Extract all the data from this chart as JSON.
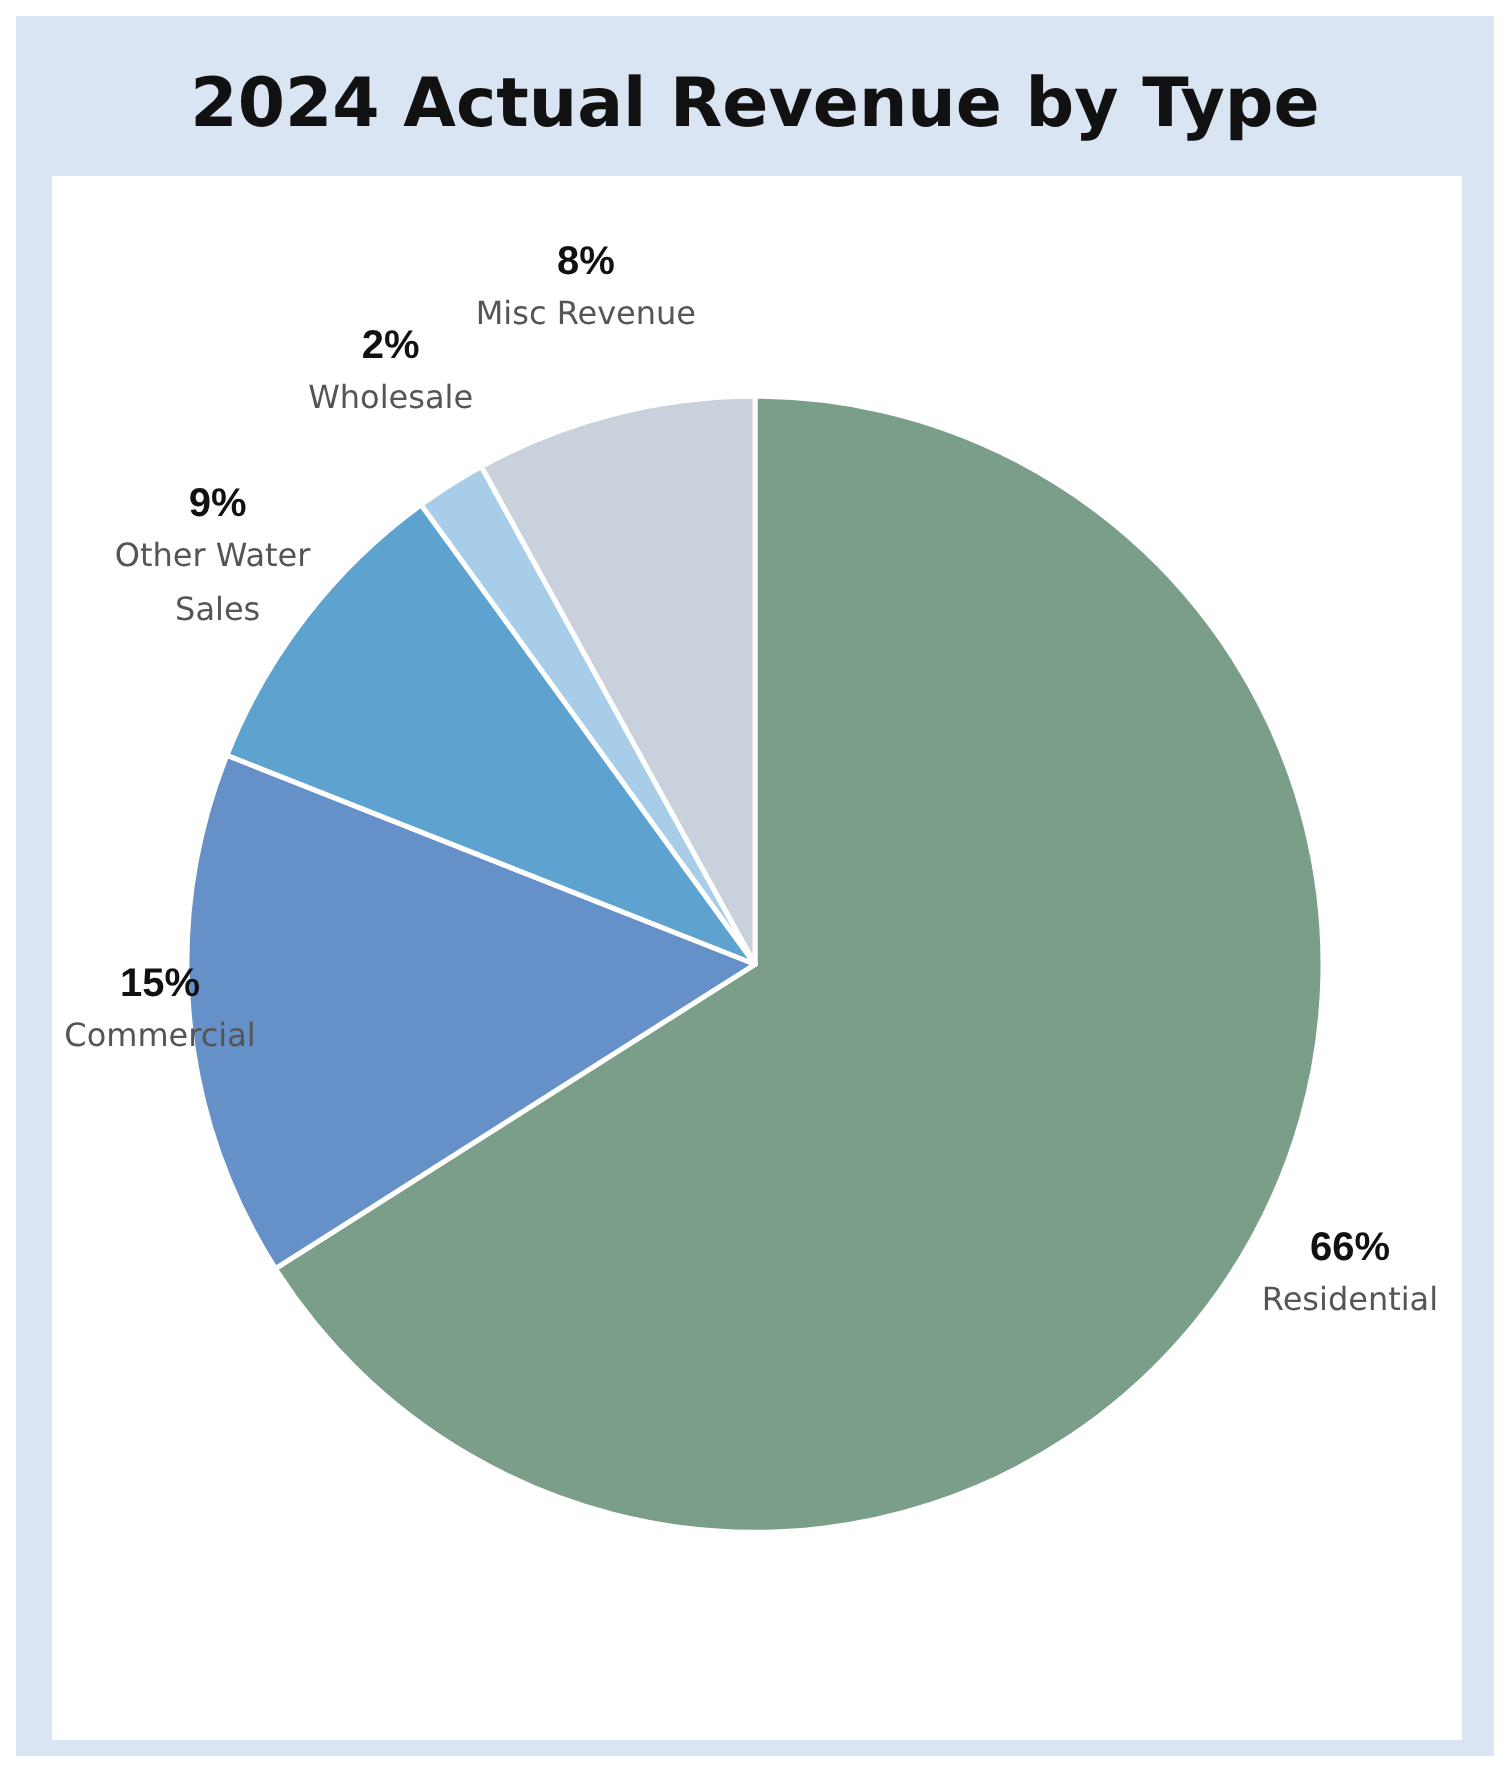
{
  "chart_data": {
    "type": "pie",
    "title": "2024 Actual Revenue by Type",
    "categories": [
      "Residential",
      "Commercial",
      "Other Water Sales",
      "Wholesale",
      "Misc Revenue"
    ],
    "values": [
      66,
      15,
      9,
      2,
      8
    ],
    "value_labels": [
      "66%",
      "15%",
      "9%",
      "2%",
      "8%"
    ],
    "colors": [
      "#7a9e87",
      "#6690c8",
      "#5ea3cf",
      "#a8cde9",
      "#c9d1dc"
    ]
  }
}
